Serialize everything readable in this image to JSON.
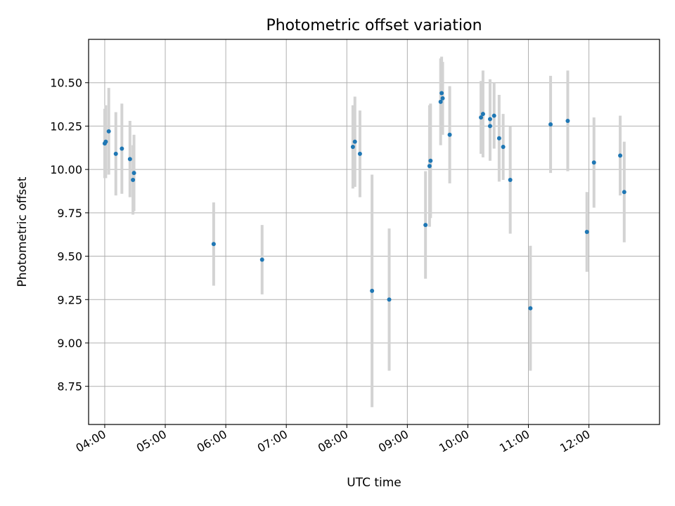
{
  "chart_data": {
    "type": "scatter",
    "title": "Photometric offset variation",
    "xlabel": "UTC time",
    "ylabel": "Photometric offset",
    "x_ticks": [
      "04:00",
      "05:00",
      "06:00",
      "07:00",
      "08:00",
      "09:00",
      "10:00",
      "11:00",
      "12:00"
    ],
    "y_ticks": [
      "8.75",
      "9.00",
      "9.25",
      "9.50",
      "9.75",
      "10.00",
      "10.25",
      "10.50"
    ],
    "xlim": [
      "03:44",
      "13:10"
    ],
    "ylim": [
      8.53,
      10.75
    ],
    "grid": true,
    "point_color": "#1f77b4",
    "errorbar_color": "#d3d3d3",
    "points": [
      {
        "x": "04:00",
        "y": 10.15,
        "err": 0.2
      },
      {
        "x": "04:01",
        "y": 10.16,
        "err": 0.21
      },
      {
        "x": "04:04",
        "y": 10.22,
        "err": 0.25
      },
      {
        "x": "04:11",
        "y": 10.09,
        "err": 0.24
      },
      {
        "x": "04:17",
        "y": 10.12,
        "err": 0.26
      },
      {
        "x": "04:25",
        "y": 10.06,
        "err": 0.22
      },
      {
        "x": "04:28",
        "y": 9.94,
        "err": 0.2
      },
      {
        "x": "04:29",
        "y": 9.98,
        "err": 0.22
      },
      {
        "x": "05:48",
        "y": 9.57,
        "err": 0.24
      },
      {
        "x": "06:36",
        "y": 9.48,
        "err": 0.2
      },
      {
        "x": "08:06",
        "y": 10.13,
        "err": 0.24
      },
      {
        "x": "08:08",
        "y": 10.16,
        "err": 0.26
      },
      {
        "x": "08:13",
        "y": 10.09,
        "err": 0.25
      },
      {
        "x": "08:25",
        "y": 9.3,
        "err": 0.67
      },
      {
        "x": "08:42",
        "y": 9.25,
        "err": 0.41
      },
      {
        "x": "09:18",
        "y": 9.68,
        "err": 0.31
      },
      {
        "x": "09:22",
        "y": 10.02,
        "err": 0.35
      },
      {
        "x": "09:23",
        "y": 10.05,
        "err": 0.33
      },
      {
        "x": "09:33",
        "y": 10.39,
        "err": 0.25
      },
      {
        "x": "09:34",
        "y": 10.44,
        "err": 0.21
      },
      {
        "x": "09:35",
        "y": 10.41,
        "err": 0.21
      },
      {
        "x": "09:42",
        "y": 10.2,
        "err": 0.28
      },
      {
        "x": "10:13",
        "y": 10.3,
        "err": 0.21
      },
      {
        "x": "10:15",
        "y": 10.32,
        "err": 0.25
      },
      {
        "x": "10:22",
        "y": 10.25,
        "err": 0.2
      },
      {
        "x": "10:22",
        "y": 10.29,
        "err": 0.23
      },
      {
        "x": "10:26",
        "y": 10.31,
        "err": 0.19
      },
      {
        "x": "10:31",
        "y": 10.18,
        "err": 0.25
      },
      {
        "x": "10:35",
        "y": 10.13,
        "err": 0.19
      },
      {
        "x": "10:42",
        "y": 9.94,
        "err": 0.31
      },
      {
        "x": "11:02",
        "y": 9.2,
        "err": 0.36
      },
      {
        "x": "11:22",
        "y": 10.26,
        "err": 0.28
      },
      {
        "x": "11:39",
        "y": 10.28,
        "err": 0.29
      },
      {
        "x": "11:58",
        "y": 9.64,
        "err": 0.23
      },
      {
        "x": "12:05",
        "y": 10.04,
        "err": 0.26
      },
      {
        "x": "12:31",
        "y": 10.08,
        "err": 0.23
      },
      {
        "x": "12:35",
        "y": 9.87,
        "err": 0.29
      }
    ]
  }
}
